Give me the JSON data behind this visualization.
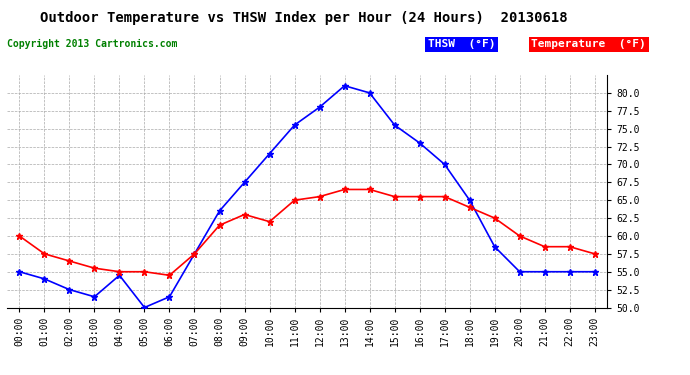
{
  "title": "Outdoor Temperature vs THSW Index per Hour (24 Hours)  20130618",
  "copyright": "Copyright 2013 Cartronics.com",
  "hours": [
    "00:00",
    "01:00",
    "02:00",
    "03:00",
    "04:00",
    "05:00",
    "06:00",
    "07:00",
    "08:00",
    "09:00",
    "10:00",
    "11:00",
    "12:00",
    "13:00",
    "14:00",
    "15:00",
    "16:00",
    "17:00",
    "18:00",
    "19:00",
    "20:00",
    "21:00",
    "22:00",
    "23:00"
  ],
  "thsw": [
    55.0,
    54.0,
    52.5,
    51.5,
    54.5,
    50.0,
    51.5,
    57.5,
    63.5,
    67.5,
    71.5,
    75.5,
    78.0,
    81.0,
    80.0,
    75.5,
    73.0,
    70.0,
    65.0,
    58.5,
    55.0,
    55.0,
    55.0,
    55.0
  ],
  "temp": [
    60.0,
    57.5,
    56.5,
    55.5,
    55.0,
    55.0,
    54.5,
    57.5,
    61.5,
    63.0,
    62.0,
    65.0,
    65.5,
    66.5,
    66.5,
    65.5,
    65.5,
    65.5,
    64.0,
    62.5,
    60.0,
    58.5,
    58.5,
    57.5
  ],
  "thsw_color": "#0000ff",
  "temp_color": "#ff0000",
  "background_color": "#ffffff",
  "grid_color": "#aaaaaa",
  "ylim": [
    50.0,
    82.5
  ],
  "yticks": [
    50.0,
    52.5,
    55.0,
    57.5,
    60.0,
    62.5,
    65.0,
    67.5,
    70.0,
    72.5,
    75.0,
    77.5,
    80.0
  ],
  "legend_thsw_bg": "#0000ff",
  "legend_temp_bg": "#ff0000",
  "legend_thsw_label": "THSW  (°F)",
  "legend_temp_label": "Temperature  (°F)",
  "marker": "*",
  "linewidth": 1.2,
  "markersize": 5,
  "title_fontsize": 10,
  "tick_fontsize": 7,
  "ytick_fontsize": 7,
  "copyright_fontsize": 7,
  "legend_fontsize": 8
}
